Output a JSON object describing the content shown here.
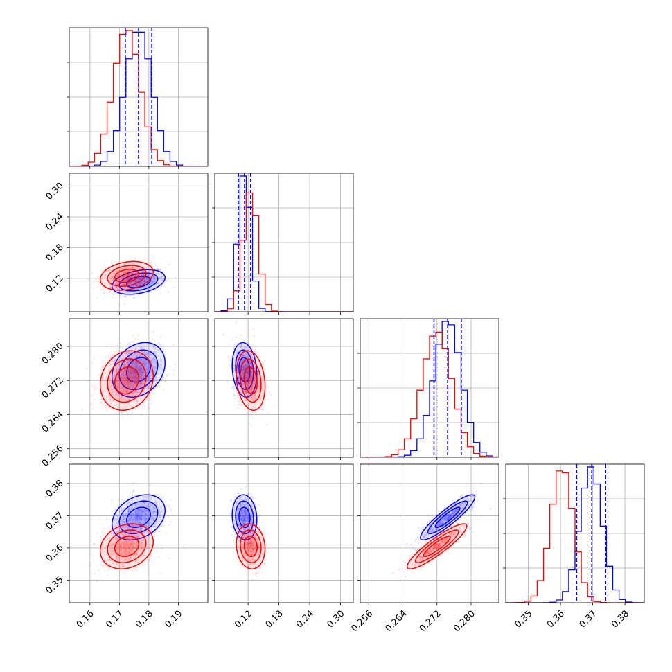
{
  "chart_data": {
    "type": "corner",
    "grid": true,
    "colors": {
      "series_a": "#0000ff",
      "series_b": "#ff0000",
      "grid": "#b0b0b0",
      "axes": "#000000"
    },
    "series": [
      {
        "color": "#0000ff",
        "means": [
          0.1765,
          0.113,
          0.2745,
          0.3695
        ],
        "sds": [
          0.0045,
          0.012,
          0.0032,
          0.0035
        ],
        "quantiles": [
          [
            0.172,
            0.1765,
            0.181
          ],
          [
            0.101,
            0.113,
            0.125
          ],
          [
            0.2713,
            0.2745,
            0.2777
          ],
          [
            0.365,
            0.3697,
            0.374
          ]
        ],
        "corr": {
          "0-1": 0.35,
          "0-2": 0.25,
          "0-3": 0.3,
          "1-2": -0.15,
          "1-3": -0.1,
          "2-3": 0.9
        }
      },
      {
        "color": "#ff0000",
        "means": [
          0.1725,
          0.125,
          0.272,
          0.3605
        ],
        "sds": [
          0.0045,
          0.014,
          0.0035,
          0.0035
        ],
        "corr": {
          "0-1": 0.25,
          "0-2": 0.15,
          "0-3": 0.2,
          "1-2": -0.2,
          "1-3": -0.1,
          "2-3": 0.9
        }
      }
    ],
    "axes": [
      {
        "range": [
          0.153,
          0.2
        ],
        "ticks": [
          0.16,
          0.17,
          0.18,
          0.19
        ],
        "tick_labels": [
          "0.16",
          "0.17",
          "0.18",
          "0.19"
        ]
      },
      {
        "range": [
          0.055,
          0.325
        ],
        "ticks": [
          0.12,
          0.18,
          0.24,
          0.3
        ],
        "tick_labels": [
          "0.12",
          "0.18",
          "0.24",
          "0.30"
        ]
      },
      {
        "range": [
          0.254,
          0.2865
        ],
        "ticks": [
          0.256,
          0.264,
          0.272,
          0.28
        ],
        "tick_labels": [
          "0.256",
          "0.264",
          "0.272",
          "0.280"
        ]
      },
      {
        "range": [
          0.343,
          0.386
        ],
        "ticks": [
          0.35,
          0.36,
          0.37,
          0.38
        ],
        "tick_labels": [
          "0.35",
          "0.36",
          "0.37",
          "0.38"
        ]
      }
    ]
  }
}
